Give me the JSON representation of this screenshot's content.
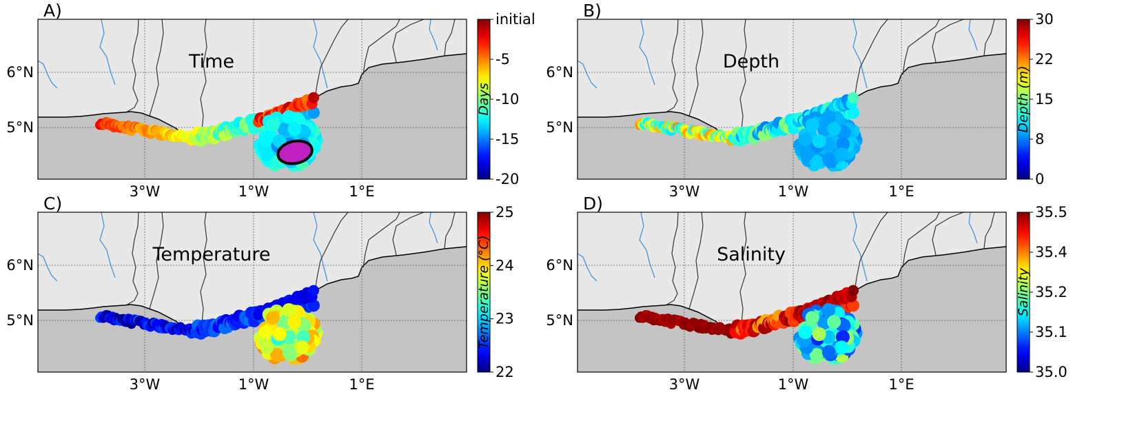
{
  "panels": [
    {
      "id": "A",
      "letter": "A)",
      "title": "Time",
      "variable": "time",
      "colorbar": {
        "ticks": [
          "initial",
          "-5",
          "-10",
          "-15",
          "-20"
        ],
        "label": "Days"
      },
      "initial_marker": "ellipse",
      "cmap": "jet",
      "reversed": false
    },
    {
      "id": "B",
      "letter": "B)",
      "title": "Depth",
      "variable": "depth",
      "colorbar": {
        "ticks": [
          "30",
          "22",
          "15",
          "8",
          "0"
        ],
        "label": "Depth (m)"
      },
      "cmap": "jet",
      "reversed": false
    },
    {
      "id": "C",
      "letter": "C)",
      "title": "Temperature",
      "variable": "temperature",
      "colorbar": {
        "ticks": [
          "25",
          "24",
          "23",
          "22"
        ],
        "label": "Temperature (°C)"
      },
      "cmap": "jet",
      "reversed": false
    },
    {
      "id": "D",
      "letter": "D)",
      "title": "Salinity",
      "variable": "salinity",
      "colorbar": {
        "ticks": [
          "35.5",
          "35.4",
          "35.2",
          "35.1",
          "35.0"
        ],
        "label": "Salinity"
      },
      "cmap": "jet",
      "reversed": false
    }
  ],
  "axes": {
    "lat_labels": [
      "6°N",
      "5°N"
    ],
    "lon_labels": [
      "3°W",
      "1°W",
      "1°E"
    ]
  },
  "colors": {
    "ocean": "#c4c4c4",
    "land": "#e8e8e8",
    "coastline": "#000000",
    "borders": "#333333",
    "rivers": "#4a90d9",
    "initial_patch": "#c020c0"
  }
}
